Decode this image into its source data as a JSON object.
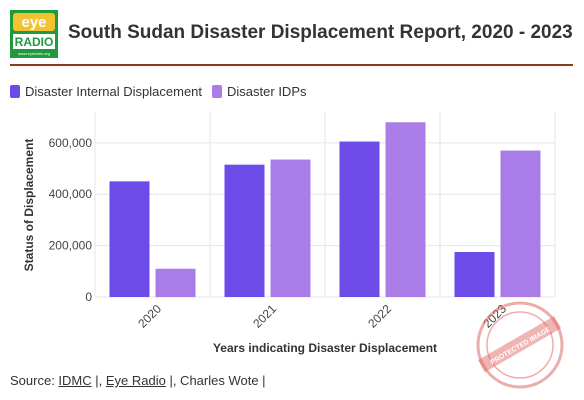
{
  "header": {
    "title": "South Sudan Disaster Displacement Report, 2020 - 2023",
    "logo_top": "eye",
    "logo_bottom": "RADIO",
    "logo_small": "www.eyeradio.org"
  },
  "colors": {
    "series1": "#6c4be8",
    "series2": "#a97ce8",
    "logo_green": "#1f9a3c",
    "logo_yellow": "#f2c230",
    "rule": "#8b3a1e",
    "stamp": "#e06a6a"
  },
  "stamp_text": "PROTECTED IMAGE",
  "chart_data": {
    "type": "bar",
    "categories": [
      "2020",
      "2021",
      "2022",
      "2023"
    ],
    "series": [
      {
        "name": "Disaster Internal Displacement",
        "values": [
          450000,
          515000,
          605000,
          175000
        ]
      },
      {
        "name": "Disaster IDPs",
        "values": [
          110000,
          535000,
          680000,
          570000
        ]
      }
    ],
    "title": "South Sudan Disaster Displacement Report, 2020 - 2023",
    "xlabel": "Years indicating Disaster Displacement",
    "ylabel": "Status of Displacement",
    "ylim": [
      0,
      720000
    ],
    "yticks": [
      0,
      200000,
      400000,
      600000
    ],
    "ytick_labels": [
      "0",
      "200,000",
      "400,000",
      "600,000"
    ],
    "grid": true,
    "legend": "top-left"
  },
  "footer": {
    "prefix": "Source: ",
    "link1": "IDMC",
    "sep1": " |, ",
    "link2": "Eye Radio",
    "sep2": " |, Charles Wote |"
  }
}
